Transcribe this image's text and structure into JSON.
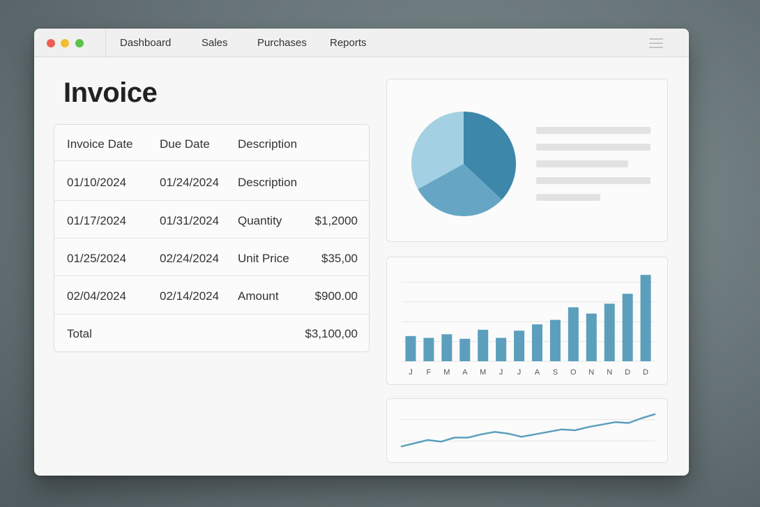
{
  "nav": {
    "items": [
      {
        "label": "Dashboard"
      },
      {
        "label": "Sales"
      },
      {
        "label": "Purchases"
      },
      {
        "label": "Reports"
      }
    ]
  },
  "page_title": "Invoice",
  "table": {
    "headers": [
      "Invoice Date",
      "Due Date",
      "Description"
    ],
    "rows": [
      {
        "invoice_date": "01/10/2024",
        "due_date": "01/24/2024",
        "description": "Description",
        "amount": ""
      },
      {
        "invoice_date": "01/17/2024",
        "due_date": "01/31/2024",
        "description": "Quantity",
        "amount": "$1,2000"
      },
      {
        "invoice_date": "01/25/2024",
        "due_date": "02/24/2024",
        "description": "Unit Price",
        "amount": "$35,00"
      },
      {
        "invoice_date": "02/04/2024",
        "due_date": "02/14/2024",
        "description": "Amount",
        "amount": "$900.00"
      }
    ],
    "total_label": "Total",
    "total_value": "$3,100,00"
  },
  "colors": {
    "accent": "#5b9fbd",
    "pie_dark": "#3d87aa",
    "pie_mid": "#66a6c4",
    "pie_light": "#a3d0e2"
  },
  "chart_data": [
    {
      "type": "pie",
      "values": [
        37,
        30,
        33
      ],
      "colors": [
        "#3d87aa",
        "#66a6c4",
        "#a3d0e2"
      ]
    },
    {
      "type": "bar",
      "categories": [
        "J",
        "F",
        "M",
        "A",
        "M",
        "J",
        "J",
        "A",
        "S",
        "O",
        "N",
        "N",
        "D",
        "D"
      ],
      "values": [
        28,
        26,
        30,
        25,
        35,
        26,
        34,
        41,
        46,
        60,
        53,
        64,
        75,
        96
      ],
      "ylim": [
        0,
        100
      ],
      "grid": true
    },
    {
      "type": "line",
      "values": [
        10,
        14,
        18,
        16,
        21,
        21,
        25,
        28,
        26,
        22,
        25,
        28,
        31,
        30,
        34,
        37,
        40,
        39,
        45,
        50
      ],
      "ylim": [
        0,
        60
      ],
      "grid": true
    }
  ]
}
